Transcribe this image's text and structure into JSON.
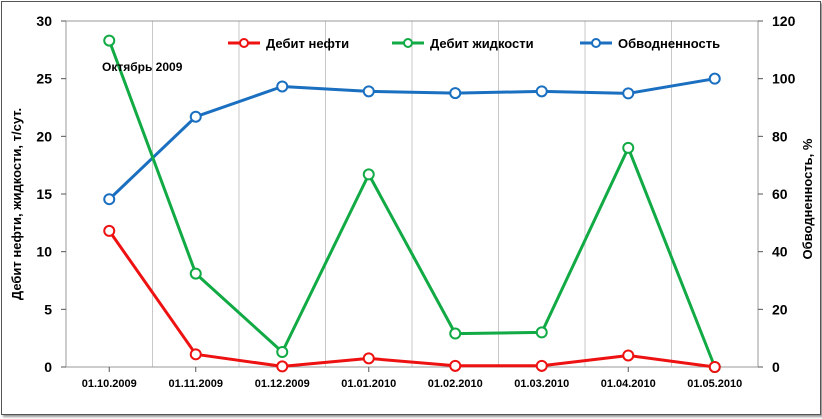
{
  "chart_data": {
    "type": "line",
    "categories": [
      "01.10.2009",
      "01.11.2009",
      "01.12.2009",
      "01.01.2010",
      "01.02.2010",
      "01.03.2010",
      "01.04.2010",
      "01.05.2010"
    ],
    "series": [
      {
        "name": "Дебит нефти",
        "axis": "left",
        "color": "#ee1111",
        "values": [
          11.8,
          1.1,
          0.05,
          0.75,
          0.1,
          0.1,
          1.0,
          0.0
        ]
      },
      {
        "name": "Дебит жидкости",
        "axis": "left",
        "color": "#11aa44",
        "values": [
          28.3,
          8.1,
          1.3,
          16.7,
          2.9,
          3.0,
          19.0,
          0.0
        ]
      },
      {
        "name": "Обводненность",
        "axis": "right",
        "color": "#1a6fc0",
        "values": [
          58.2,
          86.8,
          97.3,
          95.6,
          95.0,
          95.6,
          94.9,
          100.0
        ]
      }
    ],
    "ylabel": "Дебит нефти, жидкости, т/сут.",
    "ylabel_right": "Обводненность, %",
    "ylim": [
      0,
      30
    ],
    "ylim_right": [
      0,
      120
    ],
    "yticks": [
      "0",
      "5",
      "10",
      "15",
      "20",
      "25",
      "30"
    ],
    "yticks_right": [
      "0",
      "20",
      "40",
      "60",
      "80",
      "100",
      "120"
    ],
    "grid": "vertical",
    "legend_position": "top",
    "annotation": "Октябрь 2009"
  }
}
